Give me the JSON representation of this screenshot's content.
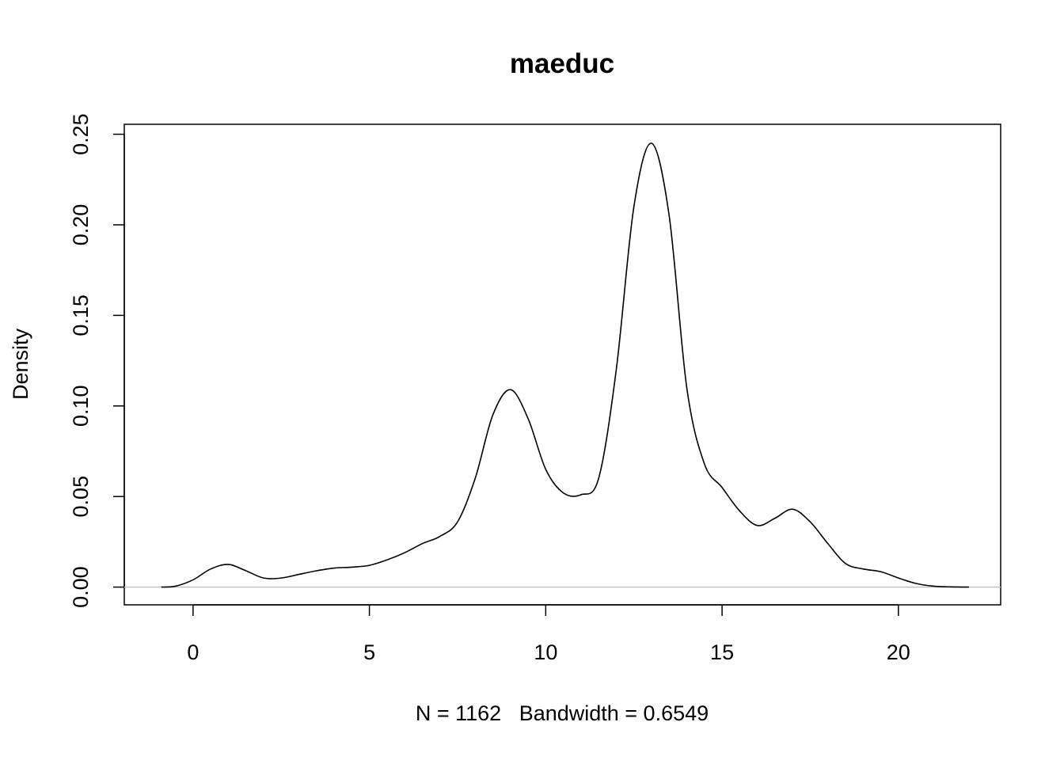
{
  "chart_data": {
    "type": "line",
    "title": "maeduc",
    "xlabel": "N = 1162   Bandwidth = 0.6549",
    "ylabel": "Density",
    "xlim": [
      -1.95,
      22.9
    ],
    "ylim": [
      -0.0098,
      0.2555
    ],
    "xticks": [
      "0",
      "5",
      "10",
      "15",
      "20"
    ],
    "yticks": [
      "0.00",
      "0.05",
      "0.10",
      "0.15",
      "0.20",
      "0.25"
    ],
    "grid": false,
    "legend": "none",
    "series": [
      {
        "x": [
          -0.9,
          -0.5,
          0.0,
          0.5,
          1.0,
          1.5,
          2.0,
          2.5,
          3.0,
          3.5,
          4.0,
          4.5,
          5.0,
          5.5,
          6.0,
          6.5,
          7.0,
          7.5,
          8.0,
          8.5,
          9.0,
          9.5,
          10.0,
          10.5,
          11.0,
          11.5,
          12.0,
          12.5,
          13.0,
          13.5,
          14.0,
          14.5,
          15.0,
          15.5,
          16.0,
          16.5,
          17.0,
          17.5,
          18.0,
          18.5,
          19.0,
          19.5,
          20.0,
          20.5,
          21.0,
          21.5,
          22.0
        ],
        "y": [
          0.0,
          0.0005,
          0.004,
          0.01,
          0.0125,
          0.009,
          0.005,
          0.005,
          0.007,
          0.009,
          0.0105,
          0.011,
          0.012,
          0.015,
          0.019,
          0.024,
          0.028,
          0.036,
          0.06,
          0.095,
          0.109,
          0.093,
          0.065,
          0.052,
          0.051,
          0.06,
          0.12,
          0.21,
          0.245,
          0.205,
          0.11,
          0.068,
          0.055,
          0.042,
          0.034,
          0.038,
          0.043,
          0.036,
          0.024,
          0.013,
          0.01,
          0.0085,
          0.005,
          0.002,
          0.0005,
          0.0001,
          0.0
        ]
      }
    ],
    "baseline_color": "#bebebe",
    "line_color": "#000000"
  }
}
